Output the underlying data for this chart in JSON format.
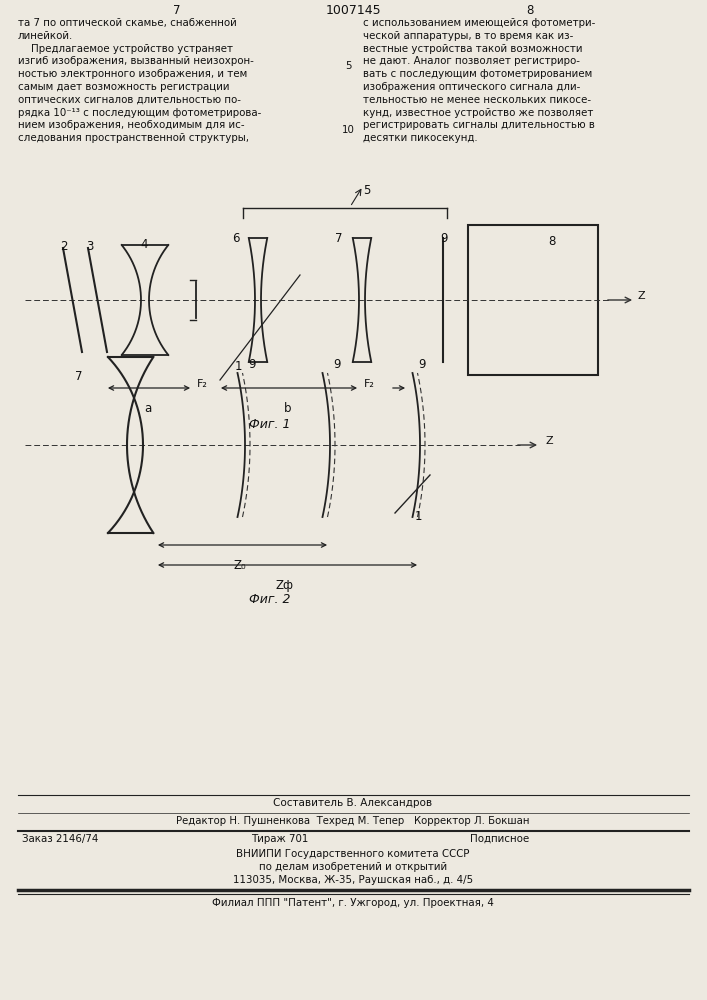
{
  "bg_color": "#ede9e0",
  "title_number": "1007145",
  "page_left": "7",
  "page_right": "8",
  "fig1_caption": "Фиг. 1",
  "fig2_caption": "Фиг. 2",
  "composer": "Составитель В. Александров",
  "editor_line": "Редактор Н. Пушненкова  Техред М. Тепер   Корректор Л. Бокшан",
  "order_line": "Заказ 2146/74",
  "tirazh_line": "Тираж 701",
  "podpisnoe_line": "Подписное",
  "vniip1": "ВНИИПИ Государственного комитета СССР",
  "vniip2": "по делам изобретений и открытий",
  "vniip3": "113035, Москва, Ж-35, Раушская наб., д. 4/5",
  "filial": "Филиал ППП \"Патент\", г. Ужгород, ул. Проектная, 4",
  "left_lines": [
    "та 7 по оптической скамье, снабженной",
    "линейкой.",
    "    Предлагаемое устройство устраняет",
    "изгиб изображения, вызванный неизохрон-",
    "ностью электронного изображения, и тем",
    "самым дает возможность регистрации",
    "оптических сигналов длительностью по-",
    "рядка 10⁻¹³ с последующим фотометрирова-",
    "нием изображения, необходимым для ис-",
    "следования пространственной структуры,"
  ],
  "right_lines": [
    "с использованием имеющейся фотометри-",
    "ческой аппаратуры, в то время как из-",
    "вестные устройства такой возможности",
    "не дают. Аналог позволяет регистриро-",
    "вать с последующим фотометрированием",
    "изображения оптического сигнала дли-",
    "тельностью не менее нескольких пикосе-",
    "кунд, известное устройство же позволяет",
    "регистрировать сигналы длительностью в",
    "десятки пикосекунд."
  ]
}
